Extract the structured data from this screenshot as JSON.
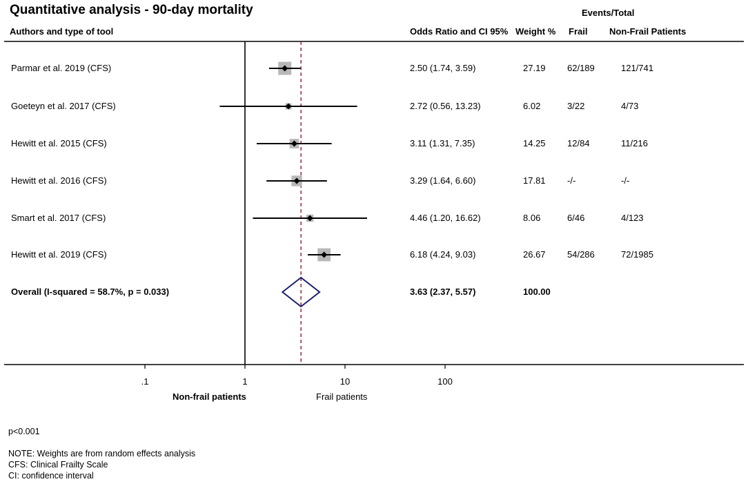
{
  "title": "Quantitative analysis - 90-day mortality",
  "headers": {
    "events_total": "Events/Total",
    "authors": "Authors and  type of tool",
    "or_ci": "Odds Ratio and CI 95%",
    "weight": "Weight %",
    "frail": "Frail",
    "nonfrail": "Non-Frail Patients"
  },
  "chart_data": {
    "type": "forest",
    "title": "Quantitative analysis - 90-day mortality",
    "x_scale": "log",
    "xlim": [
      0.02,
      1000
    ],
    "x_ticks": [
      0.1,
      1,
      10,
      100
    ],
    "x_tick_labels": [
      ".1",
      "1",
      "10",
      "100"
    ],
    "null_line": 1,
    "overall_line": 3.63,
    "left_label": "Non-frail patients",
    "right_label": "Frail patients",
    "studies": [
      {
        "label": "Parmar  et al. 2019 (CFS)",
        "or": 2.5,
        "lo": 1.74,
        "hi": 3.59,
        "or_text": "2.50 (1.74, 3.59)",
        "weight": 27.19,
        "weight_text": "27.19",
        "frail": "62/189",
        "nonfrail": "121/741"
      },
      {
        "label": "Goeteyn et al. 2017 (CFS)",
        "or": 2.72,
        "lo": 0.56,
        "hi": 13.23,
        "or_text": "2.72 (0.56, 13.23)",
        "weight": 6.02,
        "weight_text": "6.02",
        "frail": "3/22",
        "nonfrail": "4/73"
      },
      {
        "label": "Hewitt et al. 2015 (CFS)",
        "or": 3.11,
        "lo": 1.31,
        "hi": 7.35,
        "or_text": "3.11 (1.31, 7.35)",
        "weight": 14.25,
        "weight_text": "14.25",
        "frail": "12/84",
        "nonfrail": "11/216"
      },
      {
        "label": "Hewitt et al. 2016 (CFS)",
        "or": 3.29,
        "lo": 1.64,
        "hi": 6.6,
        "or_text": "3.29 (1.64, 6.60)",
        "weight": 17.81,
        "weight_text": "17.81",
        "frail": "-/-",
        "nonfrail": "-/-"
      },
      {
        "label": "Smart  et al. 2017 (CFS)",
        "or": 4.46,
        "lo": 1.2,
        "hi": 16.62,
        "or_text": "4.46 (1.20, 16.62)",
        "weight": 8.06,
        "weight_text": "8.06",
        "frail": "6/46",
        "nonfrail": "4/123"
      },
      {
        "label": "Hewitt et al. 2019 (CFS)",
        "or": 6.18,
        "lo": 4.24,
        "hi": 9.03,
        "or_text": "6.18 (4.24, 9.03)",
        "weight": 26.67,
        "weight_text": "26.67",
        "frail": "54/286",
        "nonfrail": "72/1985"
      }
    ],
    "overall": {
      "label": "Overall  (I-squared = 58.7%, p = 0.033)",
      "or": 3.63,
      "lo": 2.37,
      "hi": 5.57,
      "or_text": "3.63 (2.37, 5.57)",
      "weight_text": "100.00"
    }
  },
  "notes": {
    "p": "p<0.001",
    "line1": "NOTE: Weights are from random effects analysis",
    "line2": "CFS: Clinical Frailty Scale",
    "line3": "CI: confidence interval"
  },
  "colors": {
    "box": "#b8b8b8",
    "diamond": "#1a1f6b",
    "ref_line": "#8b1a2b",
    "ink": "#000000"
  }
}
